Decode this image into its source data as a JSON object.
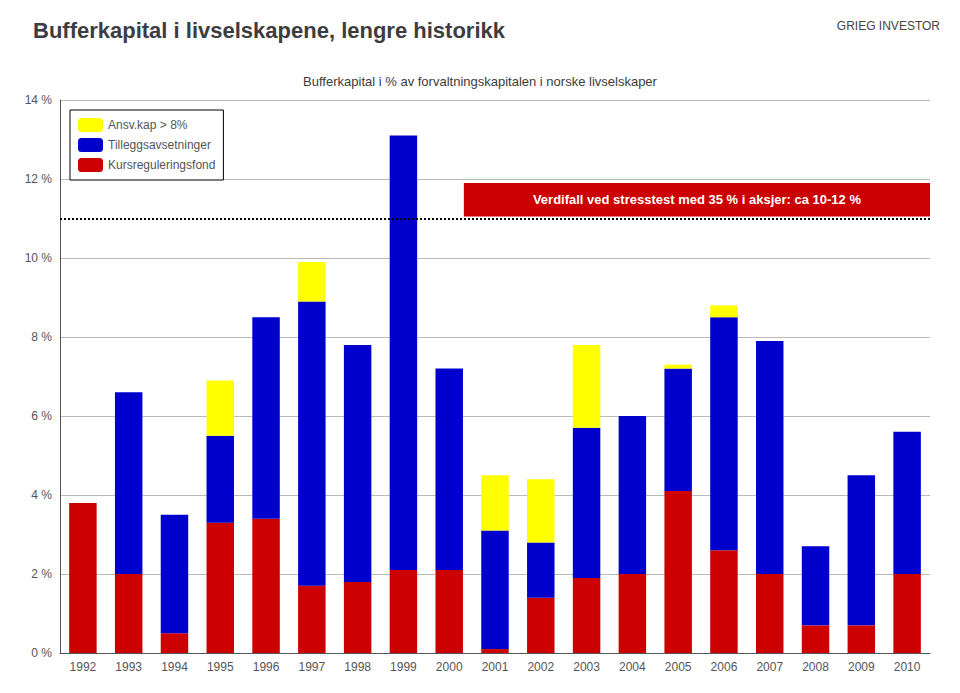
{
  "chart_data": {
    "type": "bar",
    "title": "Bufferkapital i livselskapene, lengre historikk",
    "subtitle": "Bufferkapital i % av forvaltningskapitalen i norske livselskaper",
    "logo": "GRIEG INVESTOR",
    "stacked": true,
    "grid": true,
    "legend": "upper left",
    "categories": [
      "1992",
      "1993",
      "1994",
      "1995",
      "1996",
      "1997",
      "1998",
      "1999",
      "2000",
      "2001",
      "2002",
      "2003",
      "2004",
      "2005",
      "2006",
      "2007",
      "2008",
      "2009",
      "2010"
    ],
    "series": [
      {
        "name": "Kursreguleringsfond",
        "color": "#CC0000",
        "values": [
          3.8,
          2.0,
          0.5,
          3.3,
          3.4,
          1.7,
          1.8,
          2.1,
          2.1,
          0.1,
          1.4,
          1.9,
          2.0,
          4.1,
          2.6,
          2.0,
          0.7,
          0.7,
          2.0
        ]
      },
      {
        "name": "Tilleggsavsetninger",
        "color": "#0000CC",
        "values": [
          0.0,
          4.6,
          3.0,
          2.2,
          5.1,
          7.2,
          6.0,
          11.0,
          5.1,
          3.0,
          1.4,
          3.8,
          4.0,
          3.1,
          5.9,
          5.9,
          2.0,
          3.8,
          3.6
        ]
      },
      {
        "name": "Ansv.kap > 8%",
        "color": "#FFFF00",
        "values": [
          0.0,
          0.0,
          0.0,
          1.4,
          0.0,
          1.0,
          0.0,
          0.0,
          0.0,
          1.4,
          1.6,
          2.1,
          0.0,
          0.1,
          0.3,
          0.0,
          0.0,
          0.0,
          0.0
        ]
      }
    ],
    "reference_lines": [
      {
        "y": 11.0,
        "line_style": "dotted"
      }
    ],
    "annotations": [
      {
        "text": "Verdifall ved stresstest med 35 % i aksjer: ca 10-12 %",
        "color": "#CC0000",
        "x_from": "2000",
        "y": 11.05,
        "height": 0.85
      }
    ],
    "ylim": [
      0,
      14
    ],
    "yticks": [
      {
        "value": 0,
        "label": "0 %"
      },
      {
        "value": 2,
        "label": "2 %"
      },
      {
        "value": 4,
        "label": "4 %"
      },
      {
        "value": 6,
        "label": "6 %"
      },
      {
        "value": 8,
        "label": "8 %"
      },
      {
        "value": 10,
        "label": "10 %"
      },
      {
        "value": 12,
        "label": "12 %"
      },
      {
        "value": 14,
        "label": "14 %"
      }
    ]
  }
}
